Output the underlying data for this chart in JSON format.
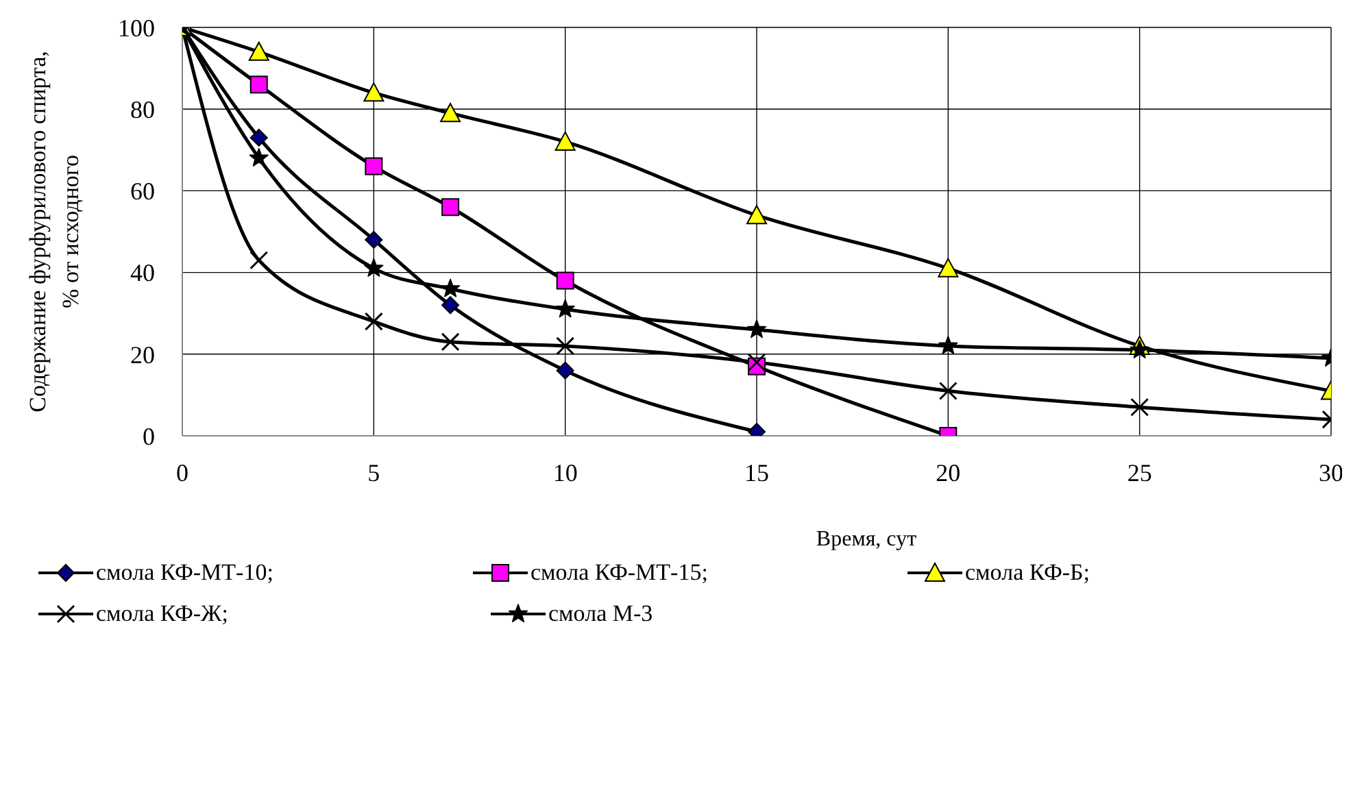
{
  "chart_data": {
    "type": "line",
    "xlabel": "Время, сут",
    "ylabel": "Содержание фурфурилового спирта,\n% от   исходного",
    "xlim": [
      0,
      30
    ],
    "xticks": [
      0,
      5,
      10,
      15,
      20,
      25,
      30
    ],
    "ylim": [
      0,
      100
    ],
    "yticks": [
      0,
      20,
      40,
      60,
      80,
      100
    ],
    "grid": true,
    "legend": "bottom",
    "series": [
      {
        "name": "смола КФ-МТ-10;",
        "color": "#000080",
        "marker": "diamond",
        "x": [
          0,
          2,
          5,
          7,
          10,
          15
        ],
        "values": [
          100,
          73,
          48,
          32,
          16,
          1
        ]
      },
      {
        "name": "смола КФ-МТ-15;",
        "color": "#ff00ff",
        "marker": "square",
        "x": [
          0,
          2,
          5,
          7,
          10,
          15,
          20
        ],
        "values": [
          100,
          86,
          66,
          56,
          38,
          17,
          0
        ]
      },
      {
        "name": "смола КФ-Б;",
        "color": "#ffff00",
        "marker": "triangle",
        "x": [
          0,
          2,
          5,
          7,
          10,
          15,
          20,
          25,
          30
        ],
        "values": [
          100,
          94,
          84,
          79,
          72,
          54,
          41,
          22,
          11
        ]
      },
      {
        "name": "смола КФ-Ж;",
        "color": "#000000",
        "marker": "cross",
        "x": [
          0,
          2,
          5,
          7,
          10,
          15,
          20,
          25,
          30
        ],
        "values": [
          100,
          43,
          28,
          23,
          22,
          18,
          11,
          7,
          4
        ]
      },
      {
        "name": "смола М-3",
        "color": "#000000",
        "marker": "star",
        "x": [
          0,
          2,
          5,
          7,
          10,
          15,
          20,
          25,
          30
        ],
        "values": [
          100,
          68,
          41,
          36,
          31,
          26,
          22,
          21,
          19
        ]
      }
    ]
  }
}
